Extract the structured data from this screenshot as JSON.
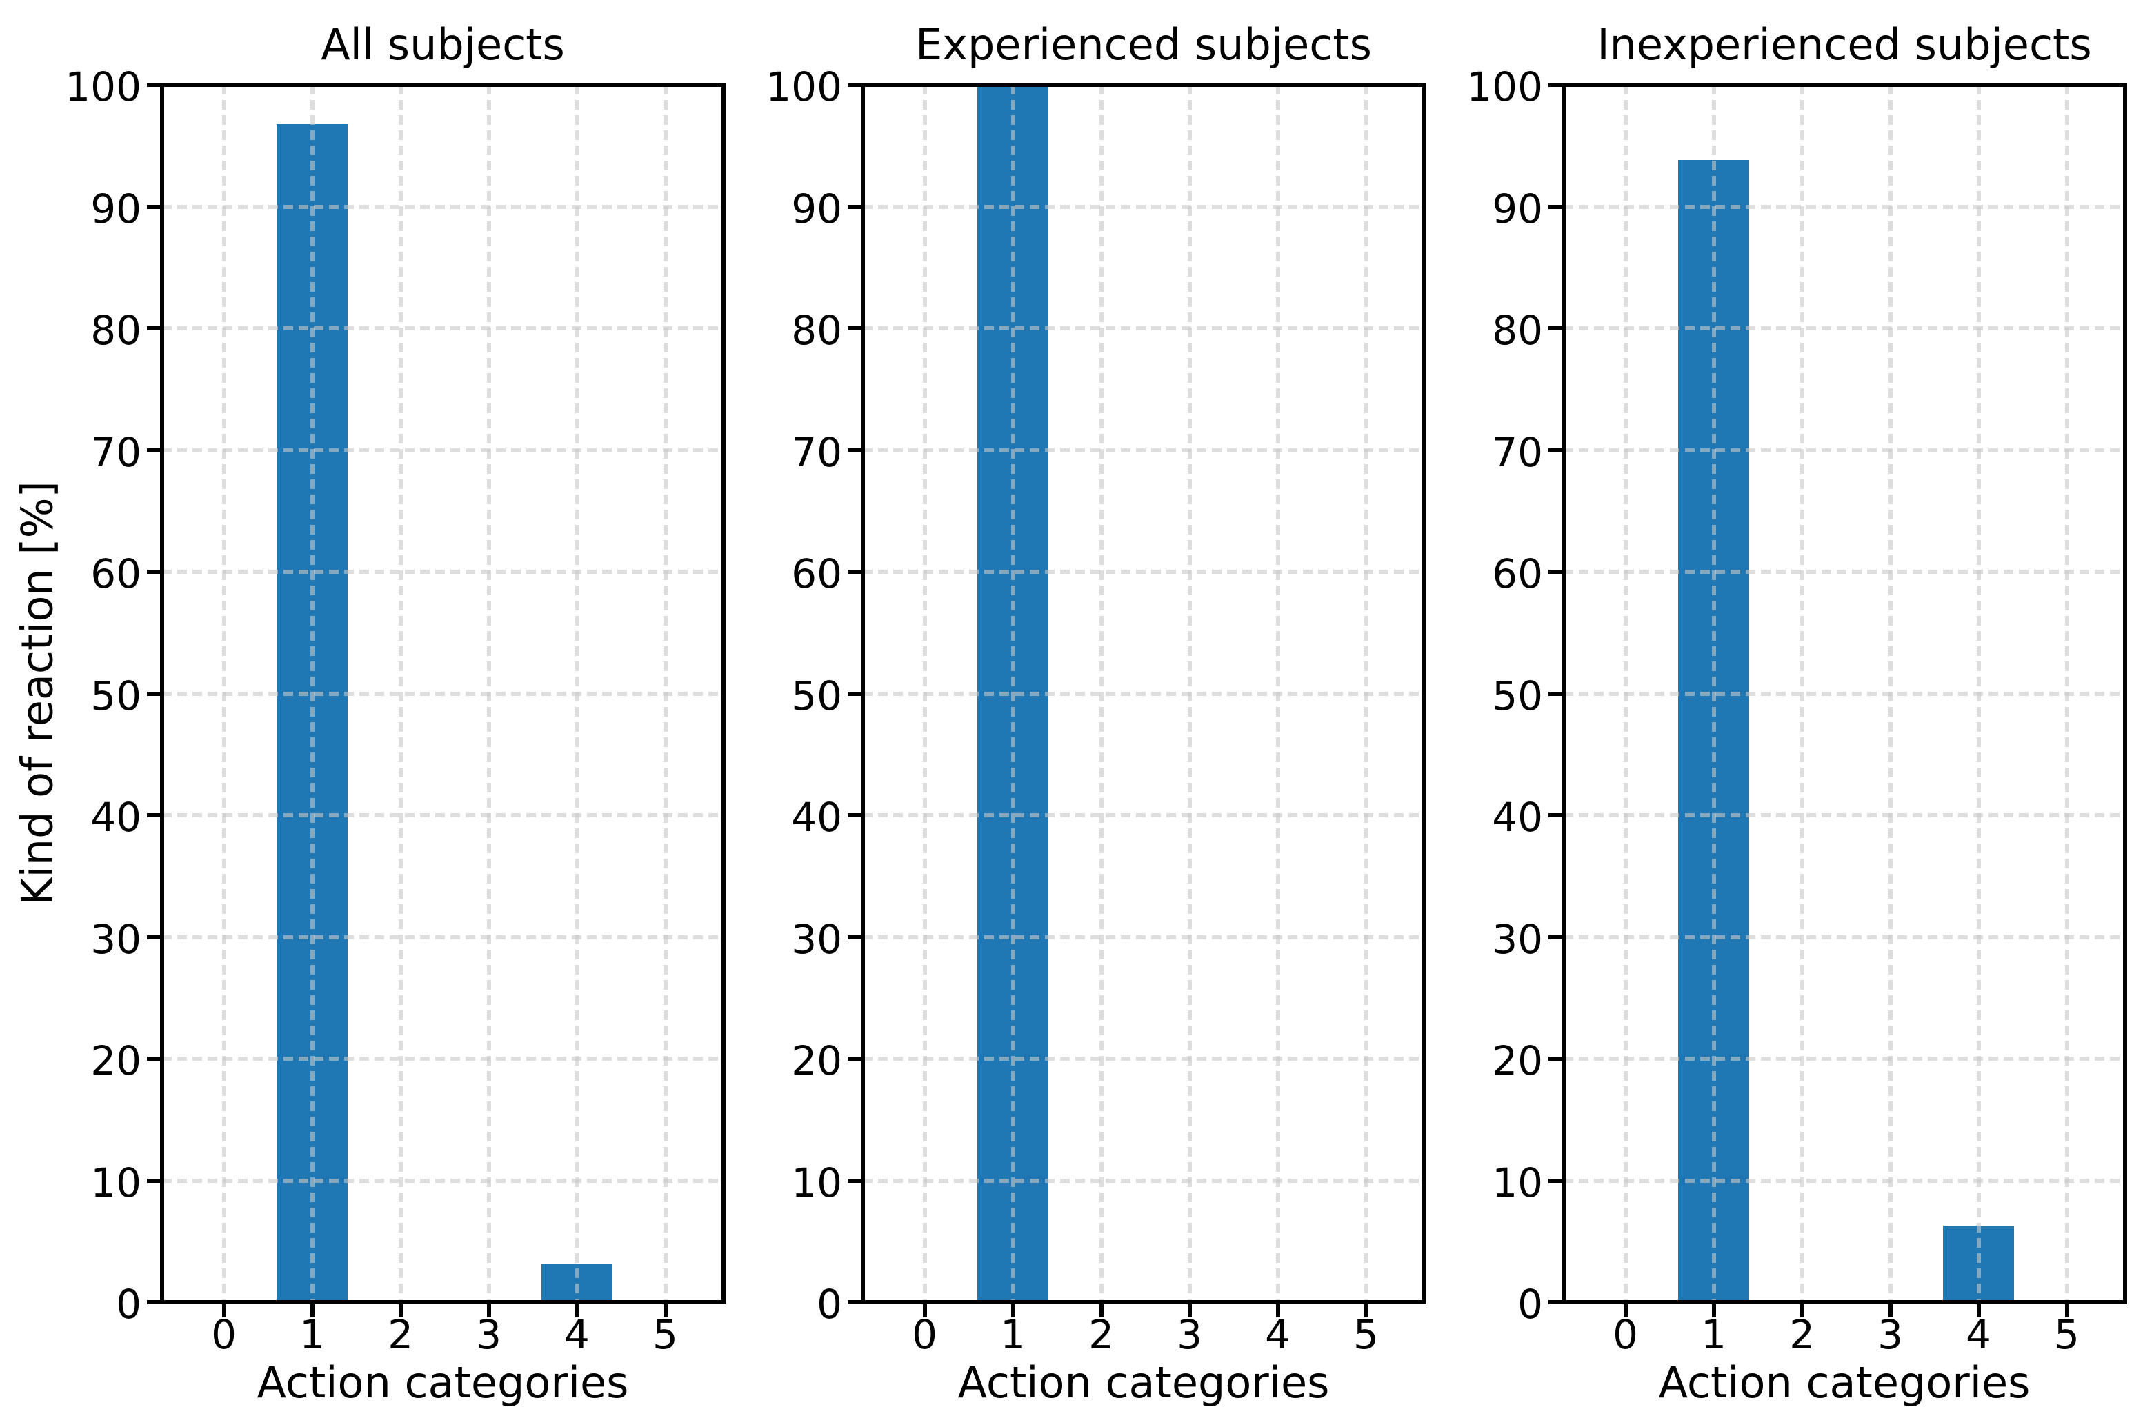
{
  "figure": {
    "background": "#ffffff",
    "bar_color": "#1f77b4",
    "grid_color": "#c8c8c8",
    "text_color": "#000000"
  },
  "chart_data": [
    {
      "type": "bar",
      "title": "All subjects",
      "xlabel": "Action categories",
      "ylabel": "Kind of reaction [%]",
      "categories": [
        0,
        1,
        2,
        3,
        4,
        5
      ],
      "values": [
        0,
        96.8,
        0,
        0,
        3.2,
        0
      ],
      "ylim": [
        0,
        100
      ],
      "ytick_step": 10,
      "xlim": [
        -0.7,
        5.66
      ],
      "bar_width": 0.8,
      "grid": "dashed",
      "legend": "none"
    },
    {
      "type": "bar",
      "title": "Experienced subjects",
      "xlabel": "Action categories",
      "ylabel": "",
      "categories": [
        0,
        1,
        2,
        3,
        4,
        5
      ],
      "values": [
        0,
        100,
        0,
        0,
        0,
        0
      ],
      "ylim": [
        0,
        100
      ],
      "ytick_step": 10,
      "xlim": [
        -0.7,
        5.66
      ],
      "bar_width": 0.8,
      "grid": "dashed",
      "legend": "none"
    },
    {
      "type": "bar",
      "title": "Inexperienced subjects",
      "xlabel": "Action categories",
      "ylabel": "",
      "categories": [
        0,
        1,
        2,
        3,
        4,
        5
      ],
      "values": [
        0,
        93.8,
        0,
        0,
        6.3,
        0
      ],
      "ylim": [
        0,
        100
      ],
      "ytick_step": 10,
      "xlim": [
        -0.7,
        5.66
      ],
      "bar_width": 0.8,
      "grid": "dashed",
      "legend": "none"
    }
  ]
}
